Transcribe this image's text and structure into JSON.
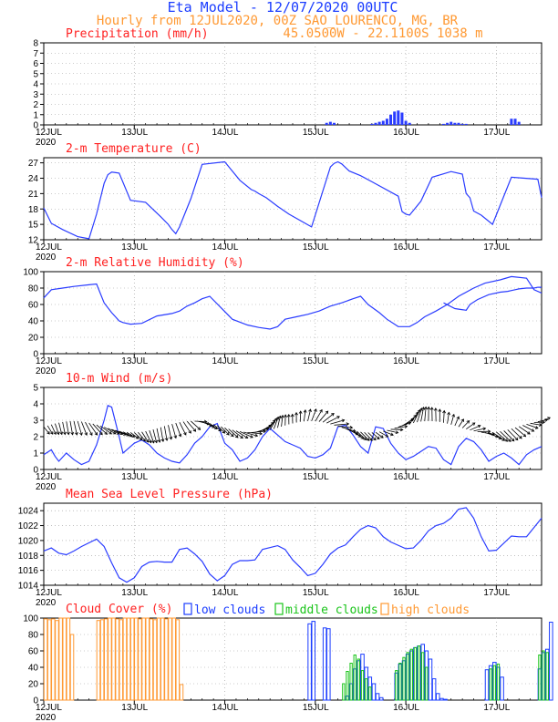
{
  "header": {
    "title": "Eta Model - 12/07/2020 00UTC",
    "subtitle": "Hourly from 12JUL2020, 00Z  SAO_LOURENCO, MG, BR",
    "coords": "45.0500W - 22.1100S   1038  m"
  },
  "colors": {
    "title": "#1a3cff",
    "subtitle": "#ff9933",
    "panel_title": "#ff2020",
    "line": "#2a3cff",
    "low_clouds": "#1a3cff",
    "middle_clouds": "#19c419",
    "high_clouds": "#ff9933",
    "arrow": "#000000"
  },
  "date_labels": [
    "12JUL",
    "13JUL",
    "14JUL",
    "15JUL",
    "16JUL",
    "17JUL"
  ],
  "year_label": "2020",
  "chart_data": [
    {
      "id": "precip",
      "type": "bar",
      "title": "Precipitation (mm/h)",
      "ylim": [
        0,
        8
      ],
      "yticks": [
        "0",
        "1",
        "2",
        "3",
        "4",
        "5",
        "6",
        "7",
        "8"
      ],
      "x_hours": [
        75,
        76,
        77,
        87,
        88,
        89,
        90,
        91,
        92,
        93,
        94,
        95,
        96,
        97,
        106,
        107,
        108,
        109,
        110,
        111,
        112,
        124,
        125,
        126
      ],
      "values": [
        0.2,
        0.3,
        0.2,
        0.1,
        0.2,
        0.3,
        0.4,
        0.6,
        1.0,
        1.3,
        1.4,
        1.2,
        0.4,
        0.2,
        0.1,
        0.2,
        0.3,
        0.2,
        0.2,
        0.1,
        0.1,
        0.6,
        0.6,
        0.3
      ]
    },
    {
      "id": "temp",
      "type": "line",
      "title": "2-m Temperature (C)",
      "ylim": [
        12,
        28
      ],
      "yticks": [
        "12",
        "15",
        "18",
        "21",
        "24",
        "27"
      ],
      "x_hours": [
        0,
        2,
        5,
        9,
        12,
        14,
        16,
        17,
        18,
        20,
        23,
        27,
        31,
        33,
        34,
        35,
        36,
        39,
        42,
        48,
        52,
        55,
        56,
        57,
        59,
        62,
        65,
        71,
        76,
        77,
        78,
        79,
        81,
        84,
        87,
        94,
        95,
        96,
        97,
        100,
        103,
        108,
        111,
        112,
        113,
        114,
        116,
        119,
        124,
        131,
        132
      ],
      "values": [
        18.2,
        15.2,
        14.0,
        12.6,
        12.2,
        17.0,
        23.0,
        24.7,
        25.2,
        25.0,
        19.7,
        19.3,
        16.5,
        15.0,
        14.0,
        13.2,
        14.5,
        20.0,
        26.7,
        27.2,
        23.6,
        21.8,
        21.5,
        21.0,
        20.2,
        18.5,
        17.0,
        14.5,
        26.2,
        26.9,
        27.2,
        26.8,
        25.4,
        24.5,
        23.3,
        20.5,
        17.5,
        17.0,
        16.8,
        19.5,
        24.2,
        25.3,
        24.8,
        21.0,
        20.2,
        17.6,
        16.8,
        15.0,
        24.2,
        23.8,
        20.2
      ]
    },
    {
      "id": "rh",
      "type": "line",
      "title": "2-m Relative Humidity (%)",
      "ylim": [
        0,
        100
      ],
      "yticks": [
        "0",
        "20",
        "40",
        "60",
        "80",
        "100"
      ],
      "x_hours": [
        0,
        2,
        5,
        8,
        12,
        14,
        16,
        18,
        20,
        21,
        23,
        26,
        30,
        34,
        36,
        38,
        40,
        42,
        44,
        47,
        50,
        54,
        57,
        60,
        62,
        64,
        67,
        70,
        73,
        76,
        79,
        82,
        84,
        86,
        89,
        91,
        94,
        97,
        99,
        101,
        104,
        107,
        110,
        114,
        117,
        121,
        124,
        128,
        130,
        132
      ],
      "values": [
        68,
        78,
        80,
        82,
        84,
        85,
        62,
        50,
        40,
        38,
        36,
        37,
        46,
        49,
        52,
        58,
        62,
        67,
        70,
        56,
        42,
        35,
        32,
        30,
        33,
        42,
        45,
        48,
        52,
        58,
        62,
        67,
        70,
        60,
        50,
        42,
        33,
        33,
        38,
        45,
        52,
        60,
        70,
        80,
        86,
        90,
        94,
        92,
        78,
        74
      ],
      "x_hours2": [
        106,
        109,
        112,
        113,
        115,
        118,
        121,
        123,
        124,
        125,
        126,
        128,
        130,
        131,
        132
      ],
      "values2": [
        62,
        55,
        53,
        60,
        66,
        72,
        75,
        76,
        77,
        78,
        79,
        80,
        80,
        81,
        81
      ]
    },
    {
      "id": "wind",
      "type": "line",
      "title": "10-m Wind (m/s)",
      "ylim": [
        0,
        5
      ],
      "yticks": [
        "0",
        "1",
        "2",
        "3",
        "4",
        "5"
      ],
      "x_hours": [
        0,
        2,
        3,
        4,
        6,
        8,
        10,
        12,
        14,
        16,
        17,
        18,
        20,
        21,
        22,
        24,
        26,
        28,
        30,
        32,
        34,
        36,
        38,
        40,
        42,
        44,
        46,
        48,
        50,
        52,
        54,
        56,
        58,
        60,
        62,
        64,
        66,
        68,
        70,
        72,
        74,
        76,
        78,
        80,
        82,
        84,
        86,
        88,
        90,
        92,
        94,
        96,
        98,
        100,
        102,
        104,
        106,
        108,
        110,
        112,
        114,
        116,
        118,
        120,
        122,
        124,
        126,
        128,
        130,
        132
      ],
      "values": [
        0.9,
        1.2,
        0.8,
        0.5,
        1.0,
        0.6,
        0.3,
        0.5,
        1.5,
        3.0,
        3.9,
        3.8,
        2.0,
        1.0,
        1.2,
        1.6,
        1.8,
        1.5,
        1.0,
        0.7,
        0.5,
        0.4,
        0.9,
        1.6,
        2.0,
        2.6,
        2.8,
        1.6,
        1.2,
        0.5,
        0.7,
        1.2,
        2.0,
        2.5,
        2.1,
        1.7,
        1.5,
        1.3,
        0.8,
        0.7,
        0.9,
        1.3,
        2.6,
        2.7,
        2.1,
        1.4,
        1.0,
        2.6,
        2.5,
        1.6,
        1.0,
        0.6,
        0.8,
        1.1,
        1.4,
        1.3,
        0.6,
        0.3,
        1.4,
        1.9,
        1.7,
        1.2,
        0.5,
        0.8,
        1.0,
        0.7,
        0.3,
        0.9,
        1.2,
        1.4
      ]
    },
    {
      "id": "mslp",
      "type": "line",
      "title": "Mean Sea Level Pressure (hPa)",
      "ylim": [
        1014,
        1025
      ],
      "yticks": [
        "1014",
        "1016",
        "1018",
        "1020",
        "1022",
        "1024"
      ],
      "x_hours": [
        0,
        2,
        4,
        6,
        8,
        10,
        14,
        16,
        18,
        20,
        22,
        24,
        26,
        28,
        30,
        32,
        34,
        36,
        38,
        40,
        42,
        44,
        46,
        48,
        50,
        52,
        54,
        56,
        58,
        62,
        64,
        66,
        68,
        70,
        72,
        74,
        76,
        78,
        80,
        82,
        84,
        86,
        88,
        90,
        92,
        96,
        98,
        100,
        102,
        104,
        106,
        108,
        110,
        112,
        114,
        116,
        118,
        120,
        124,
        126,
        128,
        132
      ],
      "values": [
        1018.6,
        1019.0,
        1018.3,
        1018.1,
        1018.6,
        1019.2,
        1020.2,
        1019.2,
        1017.0,
        1015.0,
        1014.4,
        1015.0,
        1016.5,
        1017.1,
        1017.2,
        1017.1,
        1017.1,
        1018.8,
        1019.0,
        1018.2,
        1017.2,
        1015.5,
        1014.6,
        1015.3,
        1016.8,
        1017.3,
        1017.3,
        1017.4,
        1018.8,
        1019.3,
        1018.8,
        1017.4,
        1016.4,
        1015.3,
        1015.6,
        1016.8,
        1018.2,
        1019.0,
        1019.4,
        1020.5,
        1021.5,
        1022.0,
        1021.7,
        1020.5,
        1019.8,
        1018.9,
        1019.0,
        1020.0,
        1021.3,
        1022.0,
        1022.3,
        1023.0,
        1024.2,
        1024.4,
        1023.0,
        1020.5,
        1018.6,
        1018.7,
        1020.6,
        1020.5,
        1020.5,
        1023.0
      ]
    },
    {
      "id": "cloud",
      "type": "bar",
      "title": "Cloud Cover (%)",
      "ylim": [
        0,
        100
      ],
      "yticks": [
        "0",
        "20",
        "40",
        "60",
        "80",
        "100"
      ],
      "legend": {
        "low": "low clouds",
        "middle": "middle clouds",
        "high": "high clouds"
      },
      "high_hours": [
        0,
        1,
        2,
        3,
        4,
        5,
        6,
        7,
        14,
        15,
        16,
        17,
        18,
        19,
        20,
        21,
        22,
        23,
        24,
        25,
        26,
        27,
        28,
        29,
        30,
        31,
        32,
        33,
        34,
        35,
        36
      ],
      "high_values": [
        99,
        98,
        99,
        97,
        100,
        100,
        100,
        80,
        97,
        98,
        99,
        100,
        100,
        99,
        98,
        100,
        100,
        100,
        100,
        99,
        100,
        100,
        99,
        98,
        100,
        100,
        99,
        100,
        100,
        98,
        19
      ],
      "low_hours": [
        70,
        71,
        74,
        75,
        80,
        81,
        82,
        83,
        84,
        85,
        86,
        87,
        88,
        89,
        93,
        94,
        95,
        96,
        97,
        98,
        99,
        100,
        101,
        102,
        103,
        104,
        105,
        106,
        117,
        118,
        119,
        120,
        121,
        131,
        132,
        133,
        134
      ],
      "low_values": [
        93,
        96,
        88,
        87,
        5,
        20,
        38,
        48,
        56,
        40,
        28,
        20,
        8,
        3,
        33,
        44,
        48,
        56,
        60,
        64,
        66,
        68,
        60,
        50,
        26,
        8,
        2,
        1,
        37,
        42,
        46,
        40,
        28,
        38,
        58,
        62,
        95
      ],
      "mid_hours": [
        79,
        80,
        81,
        82,
        83,
        84,
        85,
        86,
        93,
        94,
        95,
        96,
        97,
        98,
        99,
        100,
        101,
        118,
        119,
        120,
        131,
        132,
        133
      ],
      "mid_values": [
        20,
        35,
        45,
        55,
        50,
        36,
        26,
        16,
        36,
        45,
        52,
        58,
        62,
        64,
        66,
        58,
        40,
        38,
        42,
        44,
        55,
        60,
        58
      ]
    }
  ]
}
